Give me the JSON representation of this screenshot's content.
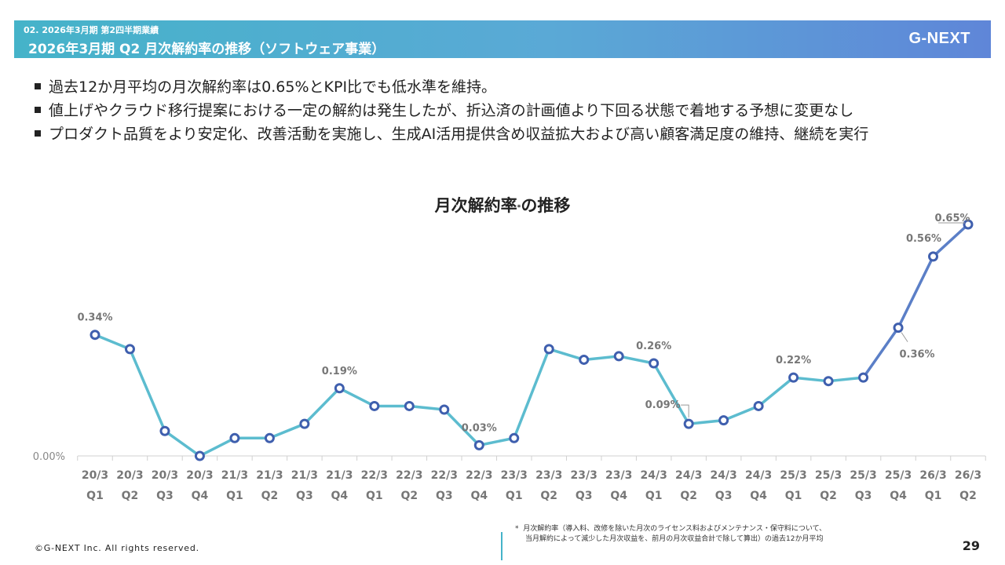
{
  "header": {
    "subtitle": "02. 2026年3月期 第2四半期業績",
    "title": "2026年3月期 Q2 月次解約率の推移（ソフトウェア事業）",
    "logo": "G-NEXT"
  },
  "bullets": [
    "過去12か月平均の月次解約率は0.65%とKPI比でも低水準を維持。",
    "値上げやクラウド移行提案における一定の解約は発生したが、折込済の計画値より下回る状態で着地する予想に変更なし",
    "プロダクト品質をより安定化、改善活動を実施し、生成AI活用提供含め収益拡大および高い顧客満足度の維持、継続を実行"
  ],
  "chart_data": {
    "type": "line",
    "title": "月次解約率",
    "title_mark": "*",
    "title_suffix": "の推移",
    "y_axis_label": "0.00%",
    "categories": [
      [
        "20/3",
        "Q1"
      ],
      [
        "20/3",
        "Q2"
      ],
      [
        "20/3",
        "Q3"
      ],
      [
        "20/3",
        "Q4"
      ],
      [
        "21/3",
        "Q1"
      ],
      [
        "21/3",
        "Q2"
      ],
      [
        "21/3",
        "Q3"
      ],
      [
        "21/3",
        "Q4"
      ],
      [
        "22/3",
        "Q1"
      ],
      [
        "22/3",
        "Q2"
      ],
      [
        "22/3",
        "Q3"
      ],
      [
        "22/3",
        "Q4"
      ],
      [
        "23/3",
        "Q1"
      ],
      [
        "23/3",
        "Q2"
      ],
      [
        "23/3",
        "Q3"
      ],
      [
        "23/3",
        "Q4"
      ],
      [
        "24/3",
        "Q1"
      ],
      [
        "24/3",
        "Q2"
      ],
      [
        "24/3",
        "Q3"
      ],
      [
        "24/3",
        "Q4"
      ],
      [
        "25/3",
        "Q1"
      ],
      [
        "25/3",
        "Q2"
      ],
      [
        "25/3",
        "Q3"
      ],
      [
        "25/3",
        "Q4"
      ],
      [
        "26/3",
        "Q1"
      ],
      [
        "26/3",
        "Q2"
      ]
    ],
    "values": [
      0.34,
      0.3,
      0.07,
      0.0,
      0.05,
      0.05,
      0.09,
      0.19,
      0.14,
      0.14,
      0.13,
      0.03,
      0.05,
      0.3,
      0.27,
      0.28,
      0.26,
      0.09,
      0.1,
      0.14,
      0.22,
      0.21,
      0.22,
      0.36,
      0.56,
      0.65
    ],
    "ylim": [
      0,
      0.65
    ],
    "data_labels": [
      {
        "index": 0,
        "text": "0.34%"
      },
      {
        "index": 7,
        "text": "0.19%"
      },
      {
        "index": 11,
        "text": "0.03%"
      },
      {
        "index": 16,
        "text": "0.26%"
      },
      {
        "index": 17,
        "text": "0.09%"
      },
      {
        "index": 20,
        "text": "0.22%"
      },
      {
        "index": 23,
        "text": "0.36%"
      },
      {
        "index": 24,
        "text": "0.56%"
      },
      {
        "index": 25,
        "text": "0.65%"
      }
    ],
    "line_color": "#5cbccf",
    "recent_line_color": "#5b7fc7",
    "marker_color": "#3f5fae"
  },
  "footnote": {
    "mark": "*",
    "line1": "月次解約率（導入料、改修を除いた月次のライセンス料およびメンテナンス・保守料について、",
    "line2": "当月解約によって減少した月次収益を、前月の月次収益合計で除して算出）の過去12か月平均"
  },
  "footer": {
    "copyright": "©G-NEXT Inc. All rights reserved.",
    "page": "29"
  }
}
